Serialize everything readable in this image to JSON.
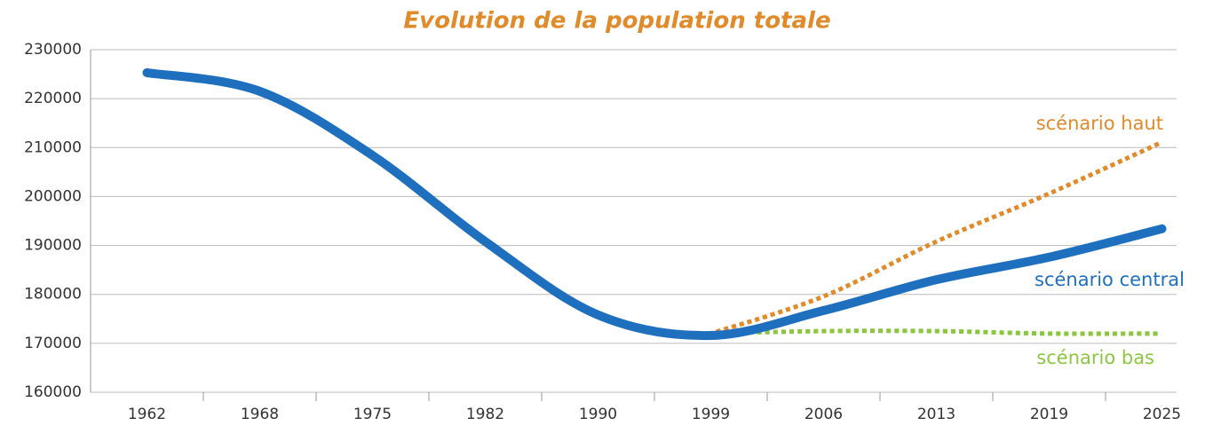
{
  "chart_data": {
    "type": "line",
    "title": "Evolution de la population totale",
    "categories": [
      "1962",
      "1968",
      "1975",
      "1982",
      "1990",
      "1999",
      "2006",
      "2013",
      "2019",
      "2025"
    ],
    "series": [
      {
        "name": "scénario haut",
        "color": "#e08a2a",
        "style": "dotted",
        "values": [
          null,
          null,
          null,
          null,
          null,
          172000,
          179600,
          190800,
          200600,
          211100
        ]
      },
      {
        "name": "scénario bas",
        "color": "#8cc63f",
        "style": "dotted",
        "values": [
          null,
          null,
          null,
          null,
          null,
          172000,
          172500,
          172500,
          172000,
          172000
        ]
      },
      {
        "name": "scénario central",
        "color": "#1f6fbf",
        "style": "solid",
        "values": [
          225300,
          221500,
          208400,
          190800,
          175800,
          171600,
          176700,
          183000,
          187600,
          193400
        ]
      }
    ],
    "ylim": [
      160000,
      230000
    ],
    "yticks": [
      160000,
      170000,
      180000,
      190000,
      200000,
      210000,
      220000,
      230000
    ],
    "grid": true
  }
}
